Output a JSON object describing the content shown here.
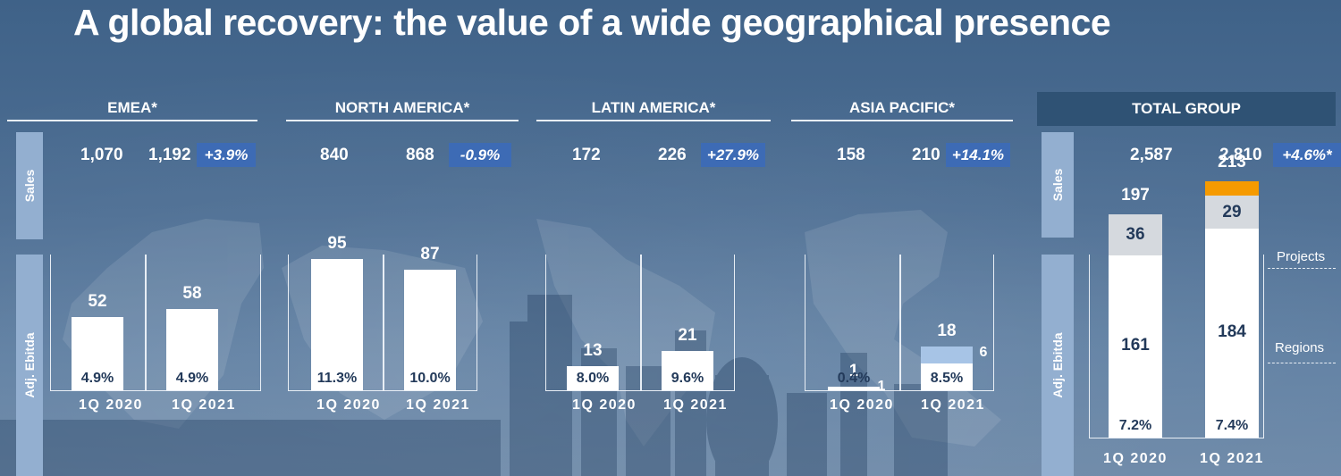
{
  "title": "A global recovery: the value of a wide geographical presence",
  "colors": {
    "background": "#4a6b90",
    "bar_main": "#ffffff",
    "badge": "#3d6bb5",
    "side_tab": "#93afd0",
    "total_header": "#2f5274",
    "projects_2021": "#f59a00",
    "projects_2020": "#d5d9de",
    "asia_2021_extra": "#a7c4e6"
  },
  "labels": {
    "sales": "Sales",
    "adj_ebitda": "Adj. Ebitda",
    "projects": "Projects",
    "regions": "Regions"
  },
  "chart_data": [
    {
      "type": "bar",
      "title": "EMEA*",
      "categories": [
        "1Q 2020",
        "1Q 2021"
      ],
      "sales": [
        "1,070",
        "1,192"
      ],
      "sales_change": "+3.9%",
      "values": [
        52,
        58
      ],
      "values_text": [
        "52",
        "58"
      ],
      "margins": [
        "4.9%",
        "4.9%"
      ]
    },
    {
      "type": "bar",
      "title": "NORTH AMERICA*",
      "categories": [
        "1Q 2020",
        "1Q 2021"
      ],
      "sales": [
        "840",
        "868"
      ],
      "sales_change": "-0.9%",
      "values": [
        95,
        87
      ],
      "values_text": [
        "95",
        "87"
      ],
      "margins": [
        "11.3%",
        "10.0%"
      ]
    },
    {
      "type": "bar",
      "title": "LATIN AMERICA*",
      "categories": [
        "1Q 2020",
        "1Q 2021"
      ],
      "sales": [
        "172",
        "226"
      ],
      "sales_change": "+27.9%",
      "values": [
        13,
        21
      ],
      "values_text": [
        "13",
        "21"
      ],
      "margins": [
        "8.0%",
        "9.6%"
      ]
    },
    {
      "type": "bar",
      "title": "ASIA PACIFIC*",
      "categories": [
        "1Q 2020",
        "1Q 2021"
      ],
      "sales": [
        "158",
        "210"
      ],
      "sales_change": "+14.1%",
      "values": [
        1,
        18
      ],
      "values_text": [
        "1",
        "18"
      ],
      "margins": [
        "0.4%",
        "8.5%"
      ],
      "side_labels": [
        "1",
        "6"
      ]
    },
    {
      "type": "bar",
      "title": "TOTAL GROUP",
      "categories": [
        "1Q 2020",
        "1Q 2021"
      ],
      "sales": [
        "2,587",
        "2,810"
      ],
      "sales_change": "+4.6%*",
      "totals": [
        "197",
        "213"
      ],
      "series": [
        {
          "name": "Regions",
          "values": [
            161,
            184
          ]
        },
        {
          "name": "Projects",
          "values": [
            36,
            29
          ]
        }
      ],
      "margins": [
        "7.2%",
        "7.4%"
      ]
    }
  ]
}
